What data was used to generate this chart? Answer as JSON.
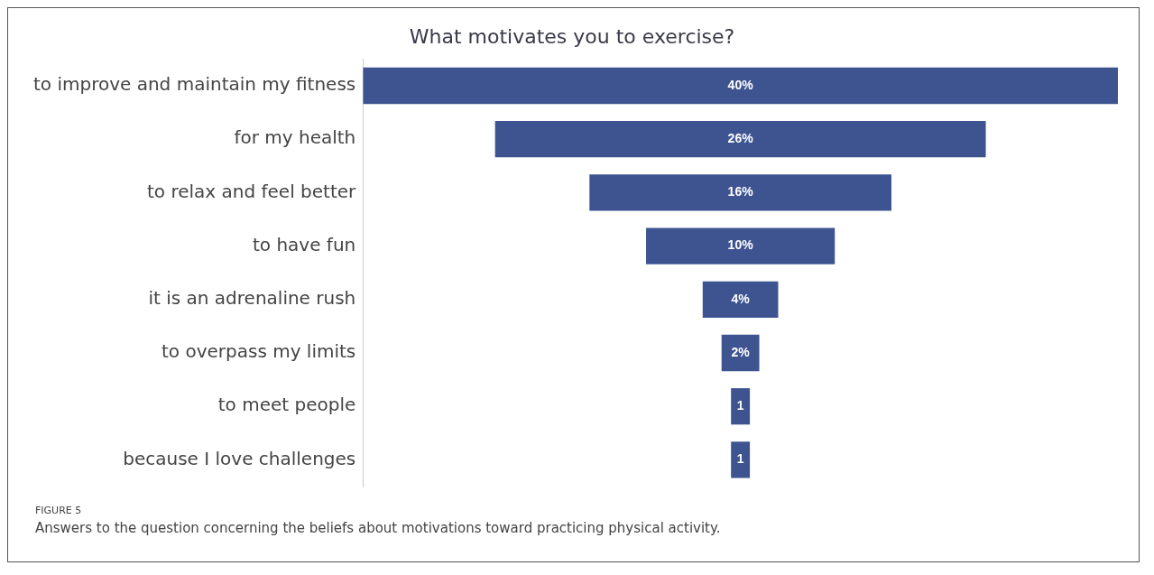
{
  "chart_data": {
    "type": "other",
    "title": "What motivates you to exercise?",
    "categories": [
      "to improve and maintain my fitness",
      "for my health",
      "to relax and feel better",
      "to have fun",
      "it is an adrenaline rush",
      "to overpass my limits",
      "to meet people",
      "because I love challenges"
    ],
    "values": [
      40,
      26,
      16,
      10,
      4,
      2,
      1,
      1
    ],
    "value_labels": [
      "40%",
      "26%",
      "16%",
      "10%",
      "4%",
      "2%",
      "1",
      "1"
    ],
    "color": "#3d5491",
    "legend": false,
    "annotations": [
      "FIGURE 5",
      "Answers to the question concerning the beliefs about motivations toward practicing physical activity."
    ]
  }
}
